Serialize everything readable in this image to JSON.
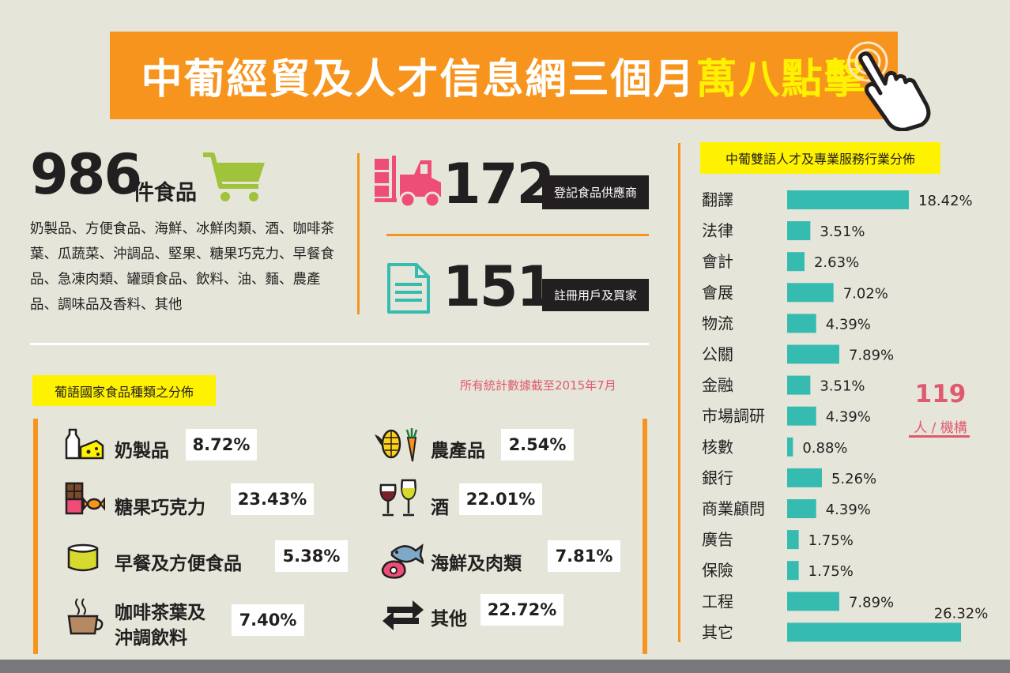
{
  "title": {
    "main": "中葡經貿及人才信息網三個月",
    "highlight": "萬八點擊"
  },
  "food": {
    "count": "986",
    "count_label": "件食品",
    "list": "奶製品、方便食品、海鮮、冰鮮肉類、酒、咖啡茶葉、瓜蔬菜、沖調品、堅果、糖果巧克力、早餐食品、急凍肉類、罐頭食品、飲料、油、麵、農產品、調味品及香料、其他"
  },
  "suppliers": {
    "count": "172",
    "label": "登記食品供應商"
  },
  "users": {
    "count": "151",
    "label": "註冊用戶及買家"
  },
  "food_dist": {
    "badge": "葡語國家食品種類之分佈",
    "note": "所有統計數據截至2015年7月",
    "items": [
      {
        "name": "奶製品",
        "pct": "8.72%",
        "icon": "milk-cheese-icon"
      },
      {
        "name": "糖果巧克力",
        "pct": "23.43%",
        "icon": "chocolate-candy-icon"
      },
      {
        "name": "早餐及方便食品",
        "pct": "5.38%",
        "icon": "bowl-icon"
      },
      {
        "name_line1": "咖啡茶葉及",
        "name_line2": "沖調飲料",
        "pct": "7.40%",
        "icon": "coffee-cup-icon"
      },
      {
        "name": "農產品",
        "pct": "2.54%",
        "icon": "corn-carrot-icon"
      },
      {
        "name": "酒",
        "pct": "22.01%",
        "icon": "wine-glasses-icon"
      },
      {
        "name": "海鮮及肉類",
        "pct": "7.81%",
        "icon": "fish-meat-icon"
      },
      {
        "name": "其他",
        "pct": "22.72%",
        "icon": "arrows-icon"
      }
    ]
  },
  "industry": {
    "badge": "中葡雙語人才及專業服務行業分佈",
    "people_count": "119",
    "people_unit": "人 / 機構"
  },
  "chart_data": {
    "type": "bar",
    "orientation": "horizontal",
    "categories": [
      "翻譯",
      "法律",
      "會計",
      "會展",
      "物流",
      "公關",
      "金融",
      "市場調研",
      "核數",
      "銀行",
      "商業顧問",
      "廣告",
      "保險",
      "工程",
      "其它"
    ],
    "values": [
      18.42,
      3.51,
      2.63,
      7.02,
      4.39,
      7.89,
      3.51,
      4.39,
      0.88,
      5.26,
      4.39,
      1.75,
      1.75,
      7.89,
      26.32
    ],
    "labels": [
      "18.42%",
      "3.51%",
      "2.63%",
      "7.02%",
      "4.39%",
      "7.89%",
      "3.51%",
      "4.39%",
      "0.88%",
      "5.26%",
      "4.39%",
      "1.75%",
      "1.75%",
      "7.89%",
      "26.32%"
    ],
    "bar_color": "#36bbb0"
  },
  "colors": {
    "orange": "#f7941d",
    "yellow": "#fff200",
    "pink": "#e05a6f",
    "teal": "#36bbb0",
    "dark": "#231f20"
  }
}
